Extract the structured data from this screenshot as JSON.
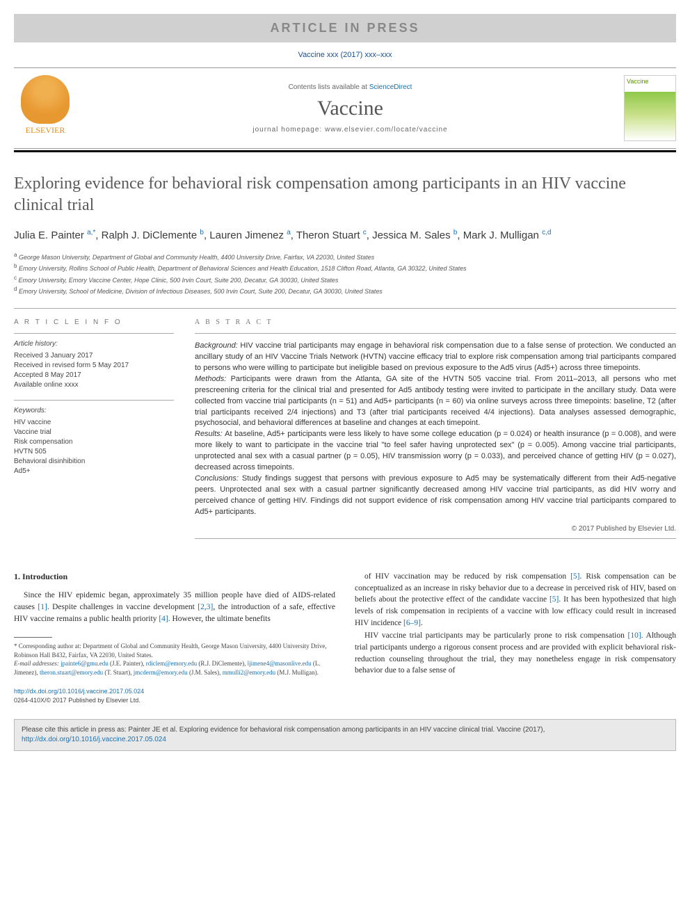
{
  "banner": {
    "text": "ARTICLE IN PRESS"
  },
  "citation_top": "Vaccine xxx (2017) xxx–xxx",
  "header": {
    "contents_text": "Contents lists available at ",
    "contents_link": "ScienceDirect",
    "journal_name": "Vaccine",
    "homepage_label": "journal homepage: ",
    "homepage_url": "www.elsevier.com/locate/vaccine",
    "elsevier_label": "ELSEVIER",
    "cover_label": "Vaccine"
  },
  "article": {
    "title": "Exploring evidence for behavioral risk compensation among participants in an HIV vaccine clinical trial",
    "authors": [
      {
        "name": "Julia E. Painter",
        "markers": "a,*"
      },
      {
        "name": "Ralph J. DiClemente",
        "markers": "b"
      },
      {
        "name": "Lauren Jimenez",
        "markers": "a"
      },
      {
        "name": "Theron Stuart",
        "markers": "c"
      },
      {
        "name": "Jessica M. Sales",
        "markers": "b"
      },
      {
        "name": "Mark J. Mulligan",
        "markers": "c,d"
      }
    ],
    "affiliations": [
      {
        "key": "a",
        "text": "George Mason University, Department of Global and Community Health, 4400 University Drive, Fairfax, VA 22030, United States"
      },
      {
        "key": "b",
        "text": "Emory University, Rollins School of Public Health, Department of Behavioral Sciences and Health Education, 1518 Clifton Road, Atlanta, GA 30322, United States"
      },
      {
        "key": "c",
        "text": "Emory University, Emory Vaccine Center, Hope Clinic, 500 Irvin Court, Suite 200, Decatur, GA 30030, United States"
      },
      {
        "key": "d",
        "text": "Emory University, School of Medicine, Division of Infectious Diseases, 500 Irvin Court, Suite 200, Decatur, GA 30030, United States"
      }
    ]
  },
  "info": {
    "header": "A R T I C L E   I N F O",
    "history_label": "Article history:",
    "history": [
      "Received 3 January 2017",
      "Received in revised form 5 May 2017",
      "Accepted 8 May 2017",
      "Available online xxxx"
    ],
    "keywords_label": "Keywords:",
    "keywords": [
      "HIV vaccine",
      "Vaccine trial",
      "Risk compensation",
      "HVTN 505",
      "Behavioral disinhibition",
      "Ad5+"
    ]
  },
  "abstract": {
    "header": "A B S T R A C T",
    "sections": [
      {
        "label": "Background:",
        "text": "HIV vaccine trial participants may engage in behavioral risk compensation due to a false sense of protection. We conducted an ancillary study of an HIV Vaccine Trials Network (HVTN) vaccine efficacy trial to explore risk compensation among trial participants compared to persons who were willing to participate but ineligible based on previous exposure to the Ad5 virus (Ad5+) across three timepoints."
      },
      {
        "label": "Methods:",
        "text": "Participants were drawn from the Atlanta, GA site of the HVTN 505 vaccine trial. From 2011–2013, all persons who met prescreening criteria for the clinical trial and presented for Ad5 antibody testing were invited to participate in the ancillary study. Data were collected from vaccine trial participants (n = 51) and Ad5+ participants (n = 60) via online surveys across three timepoints: baseline, T2 (after trial participants received 2/4 injections) and T3 (after trial participants received 4/4 injections). Data analyses assessed demographic, psychosocial, and behavioral differences at baseline and changes at each timepoint."
      },
      {
        "label": "Results:",
        "text": "At baseline, Ad5+ participants were less likely to have some college education (p = 0.024) or health insurance (p = 0.008), and were more likely to want to participate in the vaccine trial \"to feel safer having unprotected sex\" (p = 0.005). Among vaccine trial participants, unprotected anal sex with a casual partner (p = 0.05), HIV transmission worry (p = 0.033), and perceived chance of getting HIV (p = 0.027), decreased across timepoints."
      },
      {
        "label": "Conclusions:",
        "text": "Study findings suggest that persons with previous exposure to Ad5 may be systematically different from their Ad5-negative peers. Unprotected anal sex with a casual partner significantly decreased among HIV vaccine trial participants, as did HIV worry and perceived chance of getting HIV. Findings did not support evidence of risk compensation among HIV vaccine trial participants compared to Ad5+ participants."
      }
    ],
    "copyright": "© 2017 Published by Elsevier Ltd."
  },
  "body": {
    "section_heading": "1. Introduction",
    "col1_p1": "Since the HIV epidemic began, approximately 35 million people have died of AIDS-related causes [1]. Despite challenges in vaccine development [2,3], the introduction of a safe, effective HIV vaccine remains a public health priority [4]. However, the ultimate benefits",
    "col2_p1": "of HIV vaccination may be reduced by risk compensation [5]. Risk compensation can be conceptualized as an increase in risky behavior due to a decrease in perceived risk of HIV, based on beliefs about the protective effect of the candidate vaccine [5]. It has been hypothesized that high levels of risk compensation in recipients of a vaccine with low efficacy could result in increased HIV incidence [6–9].",
    "col2_p2": "HIV vaccine trial participants may be particularly prone to risk compensation [10]. Although trial participants undergo a rigorous consent process and are provided with explicit behavioral risk-reduction counseling throughout the trial, they may nonetheless engage in risk compensatory behavior due to a false sense of"
  },
  "footnote": {
    "corresponding": "* Corresponding author at: Department of Global and Community Health, George Mason University, 4400 University Drive, Robinson Hall B432, Fairfax, VA 22030, United States.",
    "emails_label": "E-mail addresses:",
    "emails": [
      {
        "email": "jpainte6@gmu.edu",
        "name": "(J.E. Painter)"
      },
      {
        "email": "rdiclem@emory.edu",
        "name": "(R.J. DiClemente)"
      },
      {
        "email": "ljimene4@masonlive.edu",
        "name": "(L. Jimenez)"
      },
      {
        "email": "theron.stuart@emory.edu",
        "name": "(T. Stuart)"
      },
      {
        "email": "jmcderm@emory.edu",
        "name": "(J.M. Sales)"
      },
      {
        "email": "mmulli2@emory.edu",
        "name": "(M.J. Mulligan)"
      }
    ]
  },
  "doi": {
    "url": "http://dx.doi.org/10.1016/j.vaccine.2017.05.024",
    "issn_copyright": "0264-410X/© 2017 Published by Elsevier Ltd."
  },
  "citebox": {
    "text": "Please cite this article in press as: Painter JE et al. Exploring evidence for behavioral risk compensation among participants in an HIV vaccine clinical trial. Vaccine (2017), ",
    "link": "http://dx.doi.org/10.1016/j.vaccine.2017.05.024"
  },
  "colors": {
    "link": "#1a6fb0",
    "banner_bg": "#d0d0d0",
    "banner_text": "#888888",
    "citebox_bg": "#e9e9e9"
  }
}
